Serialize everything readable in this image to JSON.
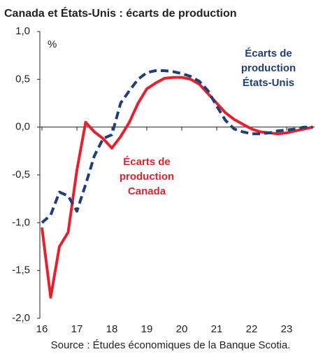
{
  "chart_data": {
    "type": "line",
    "title": "Canada et États-Unis : écarts de production",
    "y_unit": "%",
    "source": "Source : Études économiques de la Banque Scotia.",
    "x": [
      16,
      16.25,
      16.5,
      16.75,
      17,
      17.25,
      17.5,
      17.75,
      18,
      18.25,
      18.5,
      18.75,
      19,
      19.25,
      19.5,
      19.75,
      20,
      20.25,
      20.5,
      20.75,
      21,
      21.25,
      21.5,
      21.75,
      22,
      22.25,
      22.5,
      22.75,
      23,
      23.25,
      23.5,
      23.75
    ],
    "series": [
      {
        "name": "Écarts de production Canada",
        "label_lines": [
          "Écarts de",
          "production",
          "Canada"
        ],
        "color": "#e8202e",
        "dashed": false,
        "values": [
          -1.05,
          -1.78,
          -1.25,
          -1.1,
          -0.45,
          0.05,
          -0.05,
          -0.12,
          -0.22,
          -0.1,
          0.05,
          0.25,
          0.4,
          0.46,
          0.51,
          0.52,
          0.52,
          0.5,
          0.45,
          0.35,
          0.25,
          0.15,
          0.08,
          0.03,
          -0.02,
          -0.05,
          -0.06,
          -0.07,
          -0.06,
          -0.04,
          -0.02,
          0.0
        ]
      },
      {
        "name": "Écarts de production États-Unis",
        "label_lines": [
          "Écarts de",
          "production",
          "États-Unis"
        ],
        "color": "#1f3f7a",
        "dashed": true,
        "values": [
          -1.0,
          -0.92,
          -0.68,
          -0.72,
          -0.88,
          -0.6,
          -0.3,
          -0.12,
          -0.08,
          0.25,
          0.38,
          0.5,
          0.57,
          0.59,
          0.59,
          0.58,
          0.56,
          0.53,
          0.48,
          0.38,
          0.22,
          0.07,
          -0.02,
          -0.05,
          -0.07,
          -0.07,
          -0.06,
          -0.04,
          -0.03,
          -0.02,
          0.0,
          0.0
        ]
      }
    ],
    "xlim": [
      15.94,
      23.8
    ],
    "xticks": [
      16,
      17,
      18,
      19,
      20,
      21,
      22,
      23
    ],
    "ylim": [
      -2.0,
      1.0
    ],
    "yticks": [
      {
        "value": 1.0,
        "label": "1,0"
      },
      {
        "value": 0.5,
        "label": "0,5"
      },
      {
        "value": 0.0,
        "label": "0,0"
      },
      {
        "value": -0.5,
        "label": "-0,5"
      },
      {
        "value": -1.0,
        "label": "-1,0"
      },
      {
        "value": -1.5,
        "label": "-1,5"
      },
      {
        "value": -2.0,
        "label": "-2,0"
      }
    ]
  }
}
